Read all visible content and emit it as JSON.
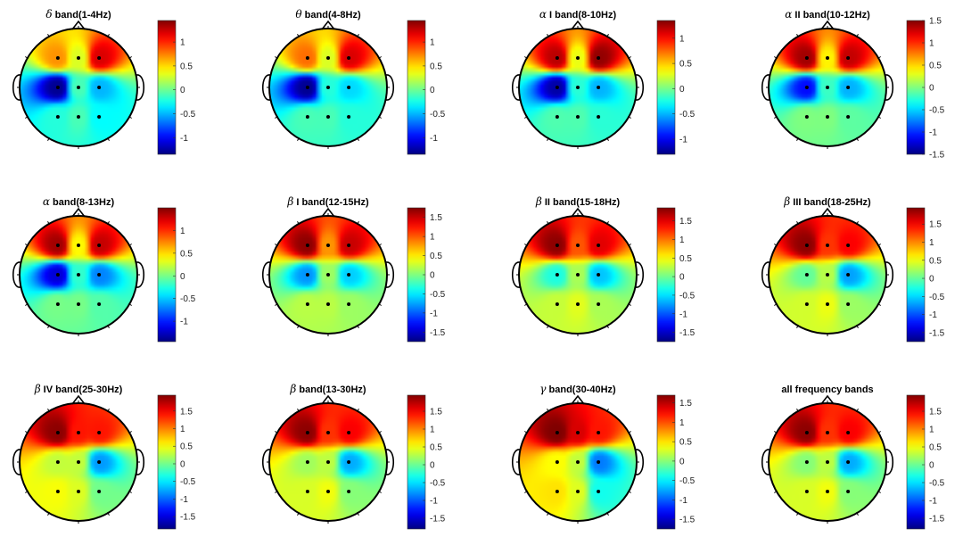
{
  "colormap": "jet",
  "colors": {
    "head_outline": "#000000",
    "electrode": "#000000",
    "colorbar_frame": "#333333"
  },
  "chart_data": [
    {
      "type": "heatmap",
      "title_symbol": "δ",
      "title_text": " band(1-4Hz)",
      "clim": [
        -1.35,
        1.45
      ],
      "ticks": [
        -1,
        -0.5,
        0,
        0.5,
        1
      ],
      "electrodes": [
        [
          -0.35,
          -0.5
        ],
        [
          0,
          -0.5
        ],
        [
          0.35,
          -0.5
        ],
        [
          -0.35,
          0
        ],
        [
          0,
          0
        ],
        [
          0.35,
          0
        ],
        [
          -0.35,
          0.5
        ],
        [
          0,
          0.5
        ],
        [
          0.35,
          0.5
        ]
      ],
      "electrode_values": [
        0.7,
        0.3,
        1.2,
        -1.3,
        -0.1,
        -0.5,
        -0.2,
        -0.1,
        -0.3
      ]
    },
    {
      "type": "heatmap",
      "title_symbol": "θ",
      "title_text": " band(4-8Hz)",
      "clim": [
        -1.35,
        1.45
      ],
      "ticks": [
        -1,
        -0.5,
        0,
        0.5,
        1
      ],
      "electrodes": [
        [
          -0.35,
          -0.5
        ],
        [
          0,
          -0.5
        ],
        [
          0.35,
          -0.5
        ],
        [
          -0.35,
          0
        ],
        [
          0,
          0
        ],
        [
          0.35,
          0
        ],
        [
          -0.35,
          0.5
        ],
        [
          0,
          0.5
        ],
        [
          0.35,
          0.5
        ]
      ],
      "electrode_values": [
        0.8,
        0.3,
        1.2,
        -1.3,
        -0.2,
        -0.4,
        -0.1,
        -0.1,
        -0.2
      ]
    },
    {
      "type": "heatmap",
      "title_symbol": "α",
      "title_text": " I band(8-10Hz)",
      "clim": [
        -1.3,
        1.35
      ],
      "ticks": [
        -1,
        -0.5,
        0,
        0.5,
        1
      ],
      "electrodes": [
        [
          -0.35,
          -0.5
        ],
        [
          0,
          -0.5
        ],
        [
          0.35,
          -0.5
        ],
        [
          -0.35,
          0
        ],
        [
          0,
          0
        ],
        [
          0.35,
          0
        ],
        [
          -0.35,
          0.5
        ],
        [
          0,
          0.5
        ],
        [
          0.35,
          0.5
        ]
      ],
      "electrode_values": [
        1.2,
        0.3,
        1.3,
        -1.2,
        -0.2,
        -0.5,
        -0.1,
        -0.1,
        -0.2
      ]
    },
    {
      "type": "heatmap",
      "title_symbol": "α",
      "title_text": " II band(10-12Hz)",
      "clim": [
        -1.5,
        1.5
      ],
      "ticks": [
        -1.5,
        -1,
        -0.5,
        0,
        0.5,
        1,
        1.5
      ],
      "electrodes": [
        [
          -0.35,
          -0.5
        ],
        [
          0,
          -0.5
        ],
        [
          0.35,
          -0.5
        ],
        [
          -0.35,
          0
        ],
        [
          0,
          0
        ],
        [
          0.35,
          0
        ],
        [
          -0.35,
          0.5
        ],
        [
          0,
          0.5
        ],
        [
          0.35,
          0.5
        ]
      ],
      "electrode_values": [
        1.4,
        0.4,
        1.3,
        -1.1,
        -0.2,
        -0.6,
        0.0,
        0.0,
        -0.1
      ]
    },
    {
      "type": "heatmap",
      "title_symbol": "α",
      "title_text": " band(8-13Hz)",
      "clim": [
        -1.45,
        1.5
      ],
      "ticks": [
        -1,
        -0.5,
        0,
        0.5,
        1
      ],
      "electrodes": [
        [
          -0.35,
          -0.5
        ],
        [
          0,
          -0.5
        ],
        [
          0.35,
          -0.5
        ],
        [
          -0.35,
          0
        ],
        [
          0,
          0
        ],
        [
          0.35,
          0
        ],
        [
          -0.35,
          0.5
        ],
        [
          0,
          0.5
        ],
        [
          0.35,
          0.5
        ]
      ],
      "electrode_values": [
        1.4,
        0.4,
        1.3,
        -1.2,
        -0.2,
        -0.7,
        0.0,
        0.0,
        -0.1
      ]
    },
    {
      "type": "heatmap",
      "title_symbol": "β",
      "title_text": " I band(12-15Hz)",
      "clim": [
        -1.75,
        1.75
      ],
      "ticks": [
        -1.5,
        -1,
        -0.5,
        0,
        0.5,
        1,
        1.5
      ],
      "electrodes": [
        [
          -0.35,
          -0.5
        ],
        [
          0,
          -0.5
        ],
        [
          0.35,
          -0.5
        ],
        [
          -0.35,
          0
        ],
        [
          0,
          0
        ],
        [
          0.35,
          0
        ],
        [
          -0.35,
          0.5
        ],
        [
          0,
          0.5
        ],
        [
          0.35,
          0.5
        ]
      ],
      "electrode_values": [
        1.7,
        0.8,
        1.5,
        -0.8,
        0.1,
        -0.6,
        0.2,
        0.2,
        0.1
      ]
    },
    {
      "type": "heatmap",
      "title_symbol": "β",
      "title_text": " II band(15-18Hz)",
      "clim": [
        -1.75,
        1.85
      ],
      "ticks": [
        -1.5,
        -1,
        -0.5,
        0,
        0.5,
        1,
        1.5
      ],
      "electrodes": [
        [
          -0.35,
          -0.5
        ],
        [
          0,
          -0.5
        ],
        [
          0.35,
          -0.5
        ],
        [
          -0.35,
          0
        ],
        [
          0,
          0
        ],
        [
          0.35,
          0
        ],
        [
          -0.35,
          0.5
        ],
        [
          0,
          0.5
        ],
        [
          0.35,
          0.5
        ]
      ],
      "electrode_values": [
        1.8,
        1.1,
        1.5,
        -0.3,
        0.2,
        -0.6,
        0.3,
        0.4,
        0.2
      ]
    },
    {
      "type": "heatmap",
      "title_symbol": "β",
      "title_text": " III band(18-25Hz)",
      "clim": [
        -1.75,
        1.95
      ],
      "ticks": [
        -1.5,
        -1,
        -0.5,
        0,
        0.5,
        1,
        1.5
      ],
      "electrodes": [
        [
          -0.35,
          -0.5
        ],
        [
          0,
          -0.5
        ],
        [
          0.35,
          -0.5
        ],
        [
          -0.35,
          0
        ],
        [
          0,
          0
        ],
        [
          0.35,
          0
        ],
        [
          -0.35,
          0.5
        ],
        [
          0,
          0.5
        ],
        [
          0.35,
          0.5
        ]
      ],
      "electrode_values": [
        1.9,
        1.3,
        1.5,
        0.0,
        0.3,
        -0.7,
        0.4,
        0.5,
        0.2
      ]
    },
    {
      "type": "heatmap",
      "title_symbol": "β",
      "title_text": " IV band(25-30Hz)",
      "clim": [
        -1.85,
        1.95
      ],
      "ticks": [
        -1.5,
        -1,
        -0.5,
        0,
        0.5,
        1,
        1.5
      ],
      "electrodes": [
        [
          -0.35,
          -0.5
        ],
        [
          0,
          -0.5
        ],
        [
          0.35,
          -0.5
        ],
        [
          -0.35,
          0
        ],
        [
          0,
          0
        ],
        [
          0.35,
          0
        ],
        [
          -0.35,
          0.5
        ],
        [
          0,
          0.5
        ],
        [
          0.35,
          0.5
        ]
      ],
      "electrode_values": [
        1.9,
        1.4,
        1.4,
        0.3,
        0.3,
        -0.8,
        0.5,
        0.4,
        0.0
      ]
    },
    {
      "type": "heatmap",
      "title_symbol": "β",
      "title_text": " band(13-30Hz)",
      "clim": [
        -1.8,
        1.95
      ],
      "ticks": [
        -1.5,
        -1,
        -0.5,
        0,
        0.5,
        1,
        1.5
      ],
      "electrodes": [
        [
          -0.35,
          -0.5
        ],
        [
          0,
          -0.5
        ],
        [
          0.35,
          -0.5
        ],
        [
          -0.35,
          0
        ],
        [
          0,
          0
        ],
        [
          0.35,
          0
        ],
        [
          -0.35,
          0.5
        ],
        [
          0,
          0.5
        ],
        [
          0.35,
          0.5
        ]
      ],
      "electrode_values": [
        1.9,
        1.3,
        1.5,
        0.2,
        0.3,
        -0.7,
        0.4,
        0.5,
        0.1
      ]
    },
    {
      "type": "heatmap",
      "title_symbol": "γ",
      "title_text": " band(30-40Hz)",
      "clim": [
        -1.75,
        1.7
      ],
      "ticks": [
        -1.5,
        -1,
        -0.5,
        0,
        0.5,
        1,
        1.5
      ],
      "electrodes": [
        [
          -0.35,
          -0.5
        ],
        [
          0,
          -0.5
        ],
        [
          0.35,
          -0.5
        ],
        [
          -0.35,
          0
        ],
        [
          0,
          0
        ],
        [
          0.35,
          0
        ],
        [
          -0.35,
          0.5
        ],
        [
          0,
          0.5
        ],
        [
          0.35,
          0.5
        ]
      ],
      "electrode_values": [
        1.7,
        1.4,
        1.2,
        0.4,
        0.2,
        -0.9,
        0.5,
        0.3,
        -0.4
      ]
    },
    {
      "type": "heatmap",
      "title_symbol": "",
      "title_text": "all frequency bands",
      "clim": [
        -1.8,
        1.95
      ],
      "ticks": [
        -1.5,
        -1,
        -0.5,
        0,
        0.5,
        1,
        1.5
      ],
      "electrodes": [
        [
          -0.35,
          -0.5
        ],
        [
          0,
          -0.5
        ],
        [
          0.35,
          -0.5
        ],
        [
          -0.35,
          0
        ],
        [
          0,
          0
        ],
        [
          0.35,
          0
        ],
        [
          -0.35,
          0.5
        ],
        [
          0,
          0.5
        ],
        [
          0.35,
          0.5
        ]
      ],
      "electrode_values": [
        1.9,
        1.3,
        1.5,
        0.1,
        0.3,
        -0.7,
        0.4,
        0.5,
        0.1
      ]
    }
  ]
}
